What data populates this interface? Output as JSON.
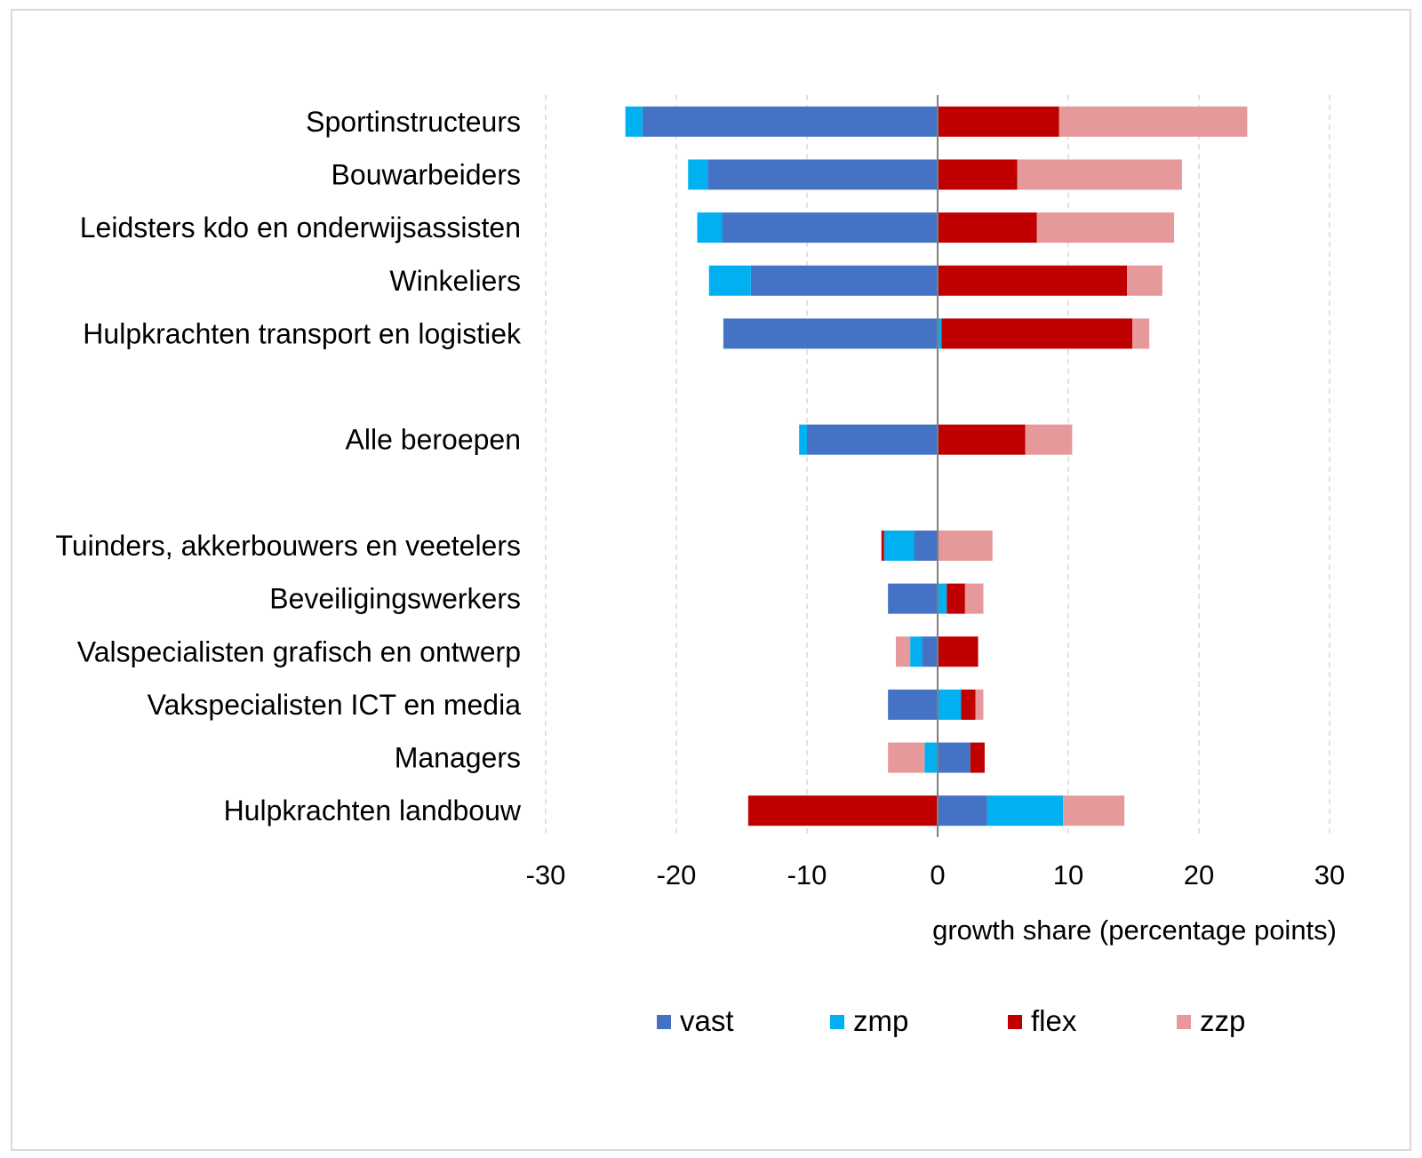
{
  "chart_data": {
    "type": "bar",
    "orientation": "horizontal",
    "stacked": "diverging",
    "title": "",
    "xlabel": "growth share (percentage points)",
    "ylabel": "",
    "xlim": [
      -30,
      30
    ],
    "xticks": [
      -30,
      -20,
      -10,
      0,
      10,
      20,
      30
    ],
    "grid": true,
    "legend_position": "bottom",
    "categories": [
      "Sportinstructeurs",
      "Bouwarbeiders",
      "Leidsters kdo en onderwijsassisten",
      "Winkeliers",
      "Hulpkrachten transport en logistiek",
      "",
      "Alle beroepen",
      "",
      "Tuinders, akkerbouwers en veetelers",
      "Beveiligingswerkers",
      "Valspecialisten grafisch en ontwerp",
      "Vakspecialisten ICT en media",
      "Managers",
      "Hulpkrachten landbouw"
    ],
    "series": [
      {
        "name": "vast",
        "color": "#4472c4",
        "values": [
          -22.6,
          -17.6,
          -16.5,
          -14.3,
          -16.4,
          null,
          -10.0,
          null,
          -1.8,
          -3.8,
          -1.2,
          -3.8,
          2.5,
          3.8
        ]
      },
      {
        "name": "zmp",
        "color": "#00b0f0",
        "values": [
          -1.3,
          -1.5,
          -1.9,
          -3.2,
          0.3,
          null,
          -0.6,
          null,
          -2.3,
          0.7,
          -0.9,
          1.8,
          -1.0,
          5.8
        ]
      },
      {
        "name": "flex",
        "color": "#c00000",
        "values": [
          9.3,
          6.1,
          7.6,
          14.5,
          14.6,
          null,
          6.7,
          null,
          -0.2,
          1.4,
          3.1,
          1.1,
          1.1,
          -14.5
        ]
      },
      {
        "name": "zzp",
        "color": "#e6999a",
        "values": [
          14.4,
          12.6,
          10.5,
          2.7,
          1.3,
          null,
          3.6,
          null,
          4.2,
          1.4,
          -1.1,
          0.6,
          -2.8,
          4.7
        ]
      }
    ]
  }
}
